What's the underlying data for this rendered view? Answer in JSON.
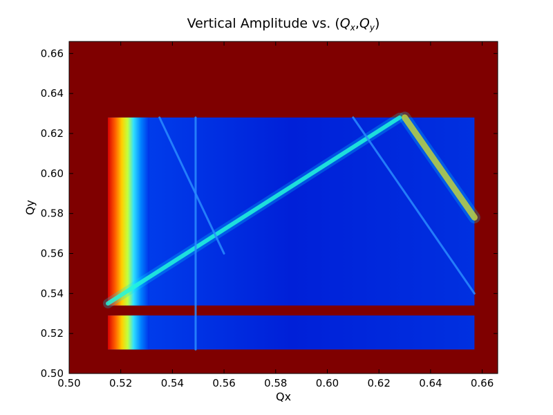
{
  "chart_data": {
    "type": "heatmap",
    "title_prefix": "Vertical Amplitude vs. (",
    "title_q": "Q",
    "title_sub_x": "x",
    "title_comma": ",",
    "title_sub_y": "y",
    "title_suffix": ")",
    "xlabel": "Qx",
    "ylabel": "Qy",
    "xlim": [
      0.5,
      0.666
    ],
    "ylim": [
      0.5,
      0.666
    ],
    "xticks": [
      0.5,
      0.52,
      0.54,
      0.56,
      0.58,
      0.6,
      0.62,
      0.64,
      0.66
    ],
    "yticks": [
      0.5,
      0.52,
      0.54,
      0.56,
      0.58,
      0.6,
      0.62,
      0.64,
      0.66
    ],
    "colormap": "jet",
    "background_color": "#7f0000",
    "regions": {
      "upper_scan": {
        "x": [
          0.515,
          0.657
        ],
        "y": [
          0.534,
          0.628
        ]
      },
      "lower_scan": {
        "x": [
          0.515,
          0.657
        ],
        "y": [
          0.512,
          0.529
        ]
      }
    },
    "resonance_lines": [
      {
        "from": [
          0.515,
          0.535
        ],
        "to": [
          0.628,
          0.628
        ],
        "level": 0.4
      },
      {
        "from": [
          0.63,
          0.628
        ],
        "to": [
          0.657,
          0.578
        ],
        "level": 0.55
      },
      {
        "from": [
          0.549,
          0.628
        ],
        "to": [
          0.549,
          0.512
        ],
        "level": 0.2
      },
      {
        "from": [
          0.535,
          0.628
        ],
        "to": [
          0.56,
          0.56
        ],
        "level": 0.15
      },
      {
        "from": [
          0.61,
          0.628
        ],
        "to": [
          0.657,
          0.54
        ],
        "level": 0.12
      }
    ]
  }
}
